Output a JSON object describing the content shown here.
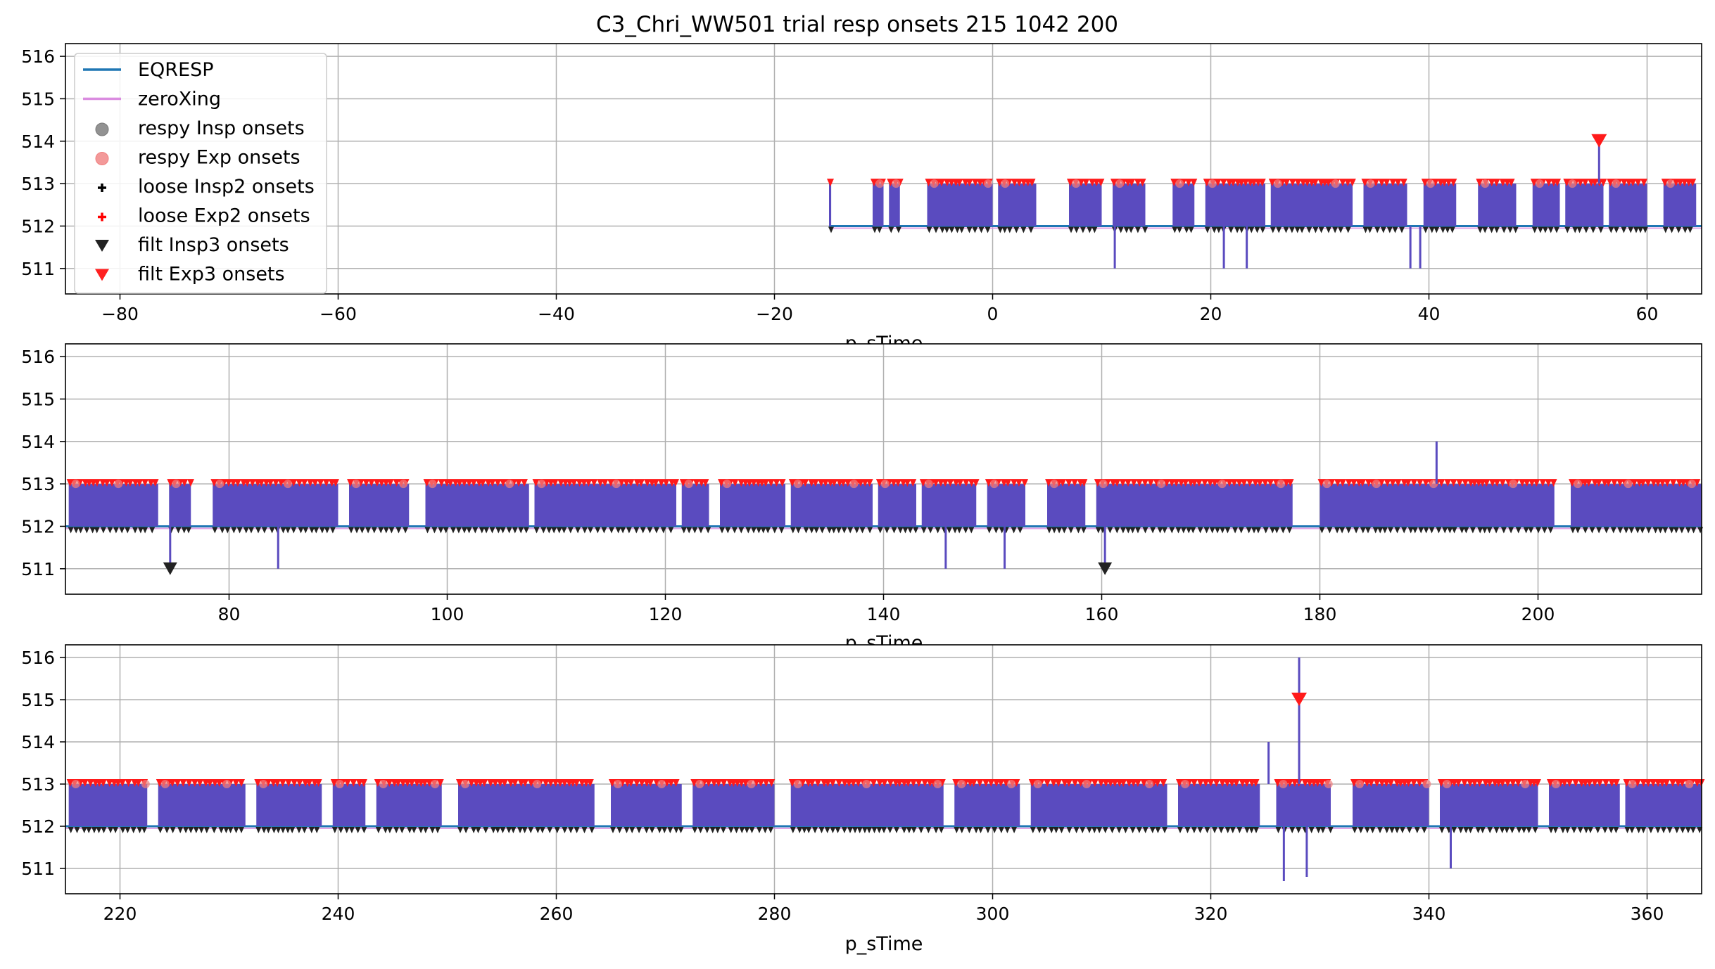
{
  "figure": {
    "title": "C3_Chri_WW501 trial resp onsets 215 1042 200"
  },
  "colors": {
    "eqresp": "#1f77b4",
    "zeroxing": "#da8ce0",
    "trace_fill": "#5a4bbf",
    "insp_marker": "#222222",
    "exp_marker": "#ff1a1a",
    "resp_exp_circle": "#f08080",
    "grid": "#b0b0b0"
  },
  "legend": {
    "items": [
      {
        "label": "EQRESP",
        "kind": "line",
        "color": "#1f77b4"
      },
      {
        "label": "zeroXing",
        "kind": "line",
        "color": "#da8ce0"
      },
      {
        "label": "respy Insp onsets",
        "kind": "circle",
        "color": "#777777"
      },
      {
        "label": "respy Exp onsets",
        "kind": "circle",
        "color": "#f08080"
      },
      {
        "label": "loose Insp2 onsets",
        "kind": "plus",
        "color": "#000000"
      },
      {
        "label": "loose Exp2 onsets",
        "kind": "plus",
        "color": "#ff0000"
      },
      {
        "label": "filt Insp3 onsets",
        "kind": "tri",
        "color": "#222222"
      },
      {
        "label": "filt Exp3 onsets",
        "kind": "tri",
        "color": "#ff2020"
      }
    ]
  },
  "chart_data": [
    {
      "type": "line",
      "xlabel": "p_sTime",
      "xlim": [
        -85,
        65
      ],
      "ylim": [
        510.4,
        516.3
      ],
      "xticks": [
        -80,
        -60,
        -40,
        -20,
        0,
        20,
        40,
        60
      ],
      "xtick_labels": [
        "−80",
        "−60",
        "−40",
        "−20",
        "0",
        "20",
        "40",
        "60"
      ],
      "yticks": [
        511,
        512,
        513,
        514,
        515,
        516
      ],
      "ytick_labels": [
        "511",
        "512",
        "513",
        "514",
        "515",
        "516"
      ],
      "grid": true,
      "legend_position": "upper-left",
      "series": [
        {
          "name": "EQRESP",
          "segments": [
            [
              -15,
              65
            ]
          ],
          "baseline": 512
        },
        {
          "name": "zeroXing",
          "segments": [
            [
              -15,
              65
            ]
          ]
        }
      ],
      "dense_segments": [
        [
          -15,
          -14.8
        ],
        [
          -11,
          -10
        ],
        [
          -9.5,
          -8.5
        ],
        [
          -6,
          0
        ],
        [
          0.5,
          4
        ],
        [
          7,
          10
        ],
        [
          11,
          14
        ],
        [
          16.5,
          18.5
        ],
        [
          19.5,
          25
        ],
        [
          25.5,
          33
        ],
        [
          34,
          38
        ],
        [
          39.5,
          42.5
        ],
        [
          44.5,
          48
        ],
        [
          49.5,
          52
        ],
        [
          52.5,
          56
        ],
        [
          56.5,
          60
        ],
        [
          61.5,
          64.5
        ]
      ],
      "spikes": [
        {
          "x": 11.2,
          "y": 511
        },
        {
          "x": 21.2,
          "y": 511
        },
        {
          "x": 23.3,
          "y": 511
        },
        {
          "x": 38.3,
          "y": 511
        },
        {
          "x": 39.2,
          "y": 511
        },
        {
          "x": 55.6,
          "y": 514
        }
      ],
      "filt_exp3_markers": [
        {
          "x": 55.6,
          "y": 514
        }
      ]
    },
    {
      "type": "line",
      "xlabel": "p_sTime",
      "xlim": [
        65,
        215
      ],
      "ylim": [
        510.4,
        516.3
      ],
      "xticks": [
        80,
        100,
        120,
        140,
        160,
        180,
        200
      ],
      "xtick_labels": [
        "80",
        "100",
        "120",
        "140",
        "160",
        "180",
        "200"
      ],
      "yticks": [
        511,
        512,
        513,
        514,
        515,
        516
      ],
      "ytick_labels": [
        "511",
        "512",
        "513",
        "514",
        "515",
        "516"
      ],
      "grid": true,
      "series": [
        {
          "name": "EQRESP",
          "segments": [
            [
              65,
              215
            ]
          ],
          "baseline": 512
        },
        {
          "name": "zeroXing",
          "segments": [
            [
              65,
              215
            ]
          ]
        }
      ],
      "dense_segments": [
        [
          65.3,
          73.5
        ],
        [
          74.5,
          76.5
        ],
        [
          78.5,
          90
        ],
        [
          91,
          96.5
        ],
        [
          98,
          107.5
        ],
        [
          108,
          121
        ],
        [
          121.5,
          124
        ],
        [
          125,
          131
        ],
        [
          131.5,
          139
        ],
        [
          139.5,
          143
        ],
        [
          143.5,
          148.5
        ],
        [
          149.5,
          153
        ],
        [
          155,
          158.5
        ],
        [
          159.5,
          177.5
        ],
        [
          180,
          201.5
        ],
        [
          203,
          215
        ]
      ],
      "spikes": [
        {
          "x": 74.6,
          "y": 511
        },
        {
          "x": 84.5,
          "y": 511
        },
        {
          "x": 145.7,
          "y": 511
        },
        {
          "x": 151.1,
          "y": 511
        },
        {
          "x": 160.3,
          "y": 511
        },
        {
          "x": 190.7,
          "y": 514
        }
      ],
      "filt_insp3_markers": [
        {
          "x": 74.6,
          "y": 511
        },
        {
          "x": 160.3,
          "y": 511
        }
      ]
    },
    {
      "type": "line",
      "xlabel": "p_sTime",
      "xlim": [
        215,
        365
      ],
      "ylim": [
        510.4,
        516.3
      ],
      "xticks": [
        220,
        240,
        260,
        280,
        300,
        320,
        340,
        360
      ],
      "xtick_labels": [
        "220",
        "240",
        "260",
        "280",
        "300",
        "320",
        "340",
        "360"
      ],
      "yticks": [
        511,
        512,
        513,
        514,
        515,
        516
      ],
      "ytick_labels": [
        "511",
        "512",
        "513",
        "514",
        "515",
        "516"
      ],
      "grid": true,
      "series": [
        {
          "name": "EQRESP",
          "segments": [
            [
              215,
              365
            ]
          ],
          "baseline": 512
        },
        {
          "name": "zeroXing",
          "segments": [
            [
              215,
              365
            ]
          ]
        }
      ],
      "dense_segments": [
        [
          215.3,
          222.5
        ],
        [
          223.5,
          231.5
        ],
        [
          232.5,
          238.5
        ],
        [
          239.5,
          242.5
        ],
        [
          243.5,
          249.5
        ],
        [
          251,
          263.5
        ],
        [
          265,
          271.5
        ],
        [
          272.5,
          280
        ],
        [
          281.5,
          295.5
        ],
        [
          296.5,
          302.5
        ],
        [
          303.5,
          316
        ],
        [
          317,
          324.5
        ],
        [
          326,
          331
        ],
        [
          333,
          340
        ],
        [
          341,
          350
        ],
        [
          351,
          357.5
        ],
        [
          358,
          365
        ]
      ],
      "spikes": [
        {
          "x": 325.3,
          "y": 514
        },
        {
          "x": 328.1,
          "y": 516
        },
        {
          "x": 326.7,
          "y": 510.7
        },
        {
          "x": 328.8,
          "y": 510.8
        },
        {
          "x": 342,
          "y": 511
        }
      ],
      "filt_exp3_markers": [
        {
          "x": 328.1,
          "y": 515
        }
      ]
    }
  ]
}
